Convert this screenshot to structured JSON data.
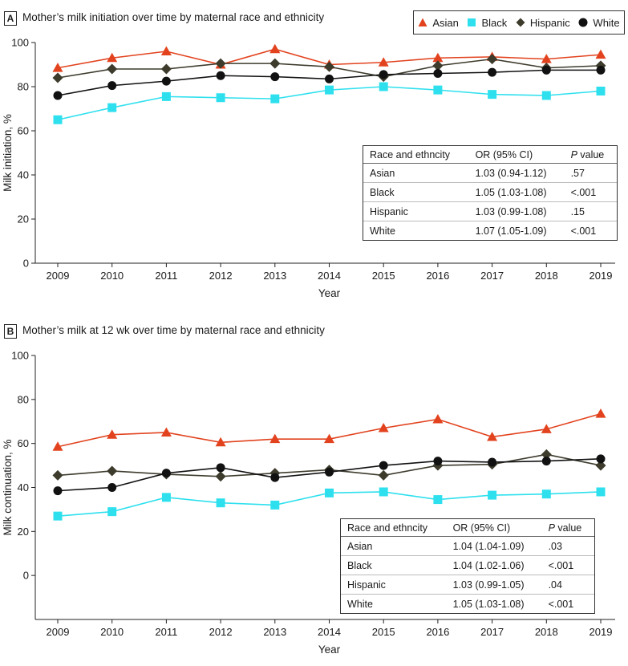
{
  "legend": {
    "items": [
      {
        "name": "Asian",
        "color": "#e2431e",
        "marker": "triangle"
      },
      {
        "name": "Black",
        "color": "#2ee0ee",
        "marker": "square"
      },
      {
        "name": "Hispanic",
        "color": "#3d3b2c",
        "marker": "diamond"
      },
      {
        "name": "White",
        "color": "#111111",
        "marker": "circle"
      }
    ]
  },
  "panels": [
    {
      "label": "A",
      "title": "Mother’s milk initiation over time by maternal race and ethnicity"
    },
    {
      "label": "B",
      "title": "Mother’s milk at 12 wk over time by maternal race and ethnicity"
    }
  ],
  "tables": [
    {
      "headers": {
        "col1": "Race and ethncity",
        "col2": "OR (95% CI)",
        "col3_p": "P",
        "col3_rest": " value"
      },
      "rows": [
        {
          "race": "Asian",
          "or": "1.03 (0.94-1.12)",
          "p": ".57"
        },
        {
          "race": "Black",
          "or": "1.05 (1.03-1.08)",
          "p": "<.001"
        },
        {
          "race": "Hispanic",
          "or": "1.03 (0.99-1.08)",
          "p": ".15"
        },
        {
          "race": "White",
          "or": "1.07 (1.05-1.09)",
          "p": "<.001"
        }
      ]
    },
    {
      "headers": {
        "col1": "Race and ethncity",
        "col2": "OR (95% CI)",
        "col3_p": "P",
        "col3_rest": " value"
      },
      "rows": [
        {
          "race": "Asian",
          "or": "1.04 (1.04-1.09)",
          "p": ".03"
        },
        {
          "race": "Black",
          "or": "1.04 (1.02-1.06)",
          "p": "<.001"
        },
        {
          "race": "Hispanic",
          "or": "1.03 (0.99-1.05)",
          "p": ".04"
        },
        {
          "race": "White",
          "or": "1.05 (1.03-1.08)",
          "p": "<.001"
        }
      ]
    }
  ],
  "chart_data": [
    {
      "type": "line",
      "title": "Mother’s milk initiation over time by maternal race and ethnicity",
      "xlabel": "Year",
      "ylabel": "Milk initiation, %",
      "x": [
        2009,
        2010,
        2011,
        2012,
        2013,
        2014,
        2015,
        2016,
        2017,
        2018,
        2019
      ],
      "ylim": [
        0,
        100
      ],
      "yticks": [
        0,
        20,
        40,
        60,
        80,
        100
      ],
      "series": [
        {
          "name": "Asian",
          "values": [
            88.5,
            93,
            96,
            90,
            97,
            90,
            91,
            93,
            93.5,
            92.5,
            94.5
          ]
        },
        {
          "name": "Black",
          "values": [
            65,
            70.5,
            75.5,
            75,
            74.5,
            78.5,
            80,
            78.5,
            76.5,
            76,
            78
          ]
        },
        {
          "name": "Hispanic",
          "values": [
            84,
            88,
            88,
            90.5,
            90.5,
            89,
            84.5,
            89.5,
            92.5,
            88.5,
            89.5
          ]
        },
        {
          "name": "White",
          "values": [
            76,
            80.5,
            82.5,
            85,
            84.5,
            83.5,
            85.5,
            86,
            86.5,
            87.5,
            87.5
          ]
        }
      ]
    },
    {
      "type": "line",
      "title": "Mother’s milk at 12 wk over time by maternal race and ethnicity",
      "xlabel": "Year",
      "ylabel": "Milk continuation, %",
      "x": [
        2009,
        2010,
        2011,
        2012,
        2013,
        2014,
        2015,
        2016,
        2017,
        2018,
        2019
      ],
      "ylim": [
        -20,
        100
      ],
      "yticks": [
        0,
        20,
        40,
        60,
        80,
        100
      ],
      "series": [
        {
          "name": "Asian",
          "values": [
            58.5,
            64,
            65,
            60.5,
            62,
            62,
            67,
            71,
            63,
            66.5,
            73.5
          ]
        },
        {
          "name": "Black",
          "values": [
            27,
            29,
            35.5,
            33,
            32,
            37.5,
            38,
            34.5,
            36.5,
            37,
            38
          ]
        },
        {
          "name": "Hispanic",
          "values": [
            45.5,
            47.5,
            46,
            45,
            46.5,
            48,
            45.5,
            50,
            50.5,
            55,
            50
          ]
        },
        {
          "name": "White",
          "values": [
            38.5,
            40,
            46.5,
            49,
            44.5,
            47,
            50,
            52,
            51.5,
            52,
            53
          ]
        }
      ]
    }
  ]
}
